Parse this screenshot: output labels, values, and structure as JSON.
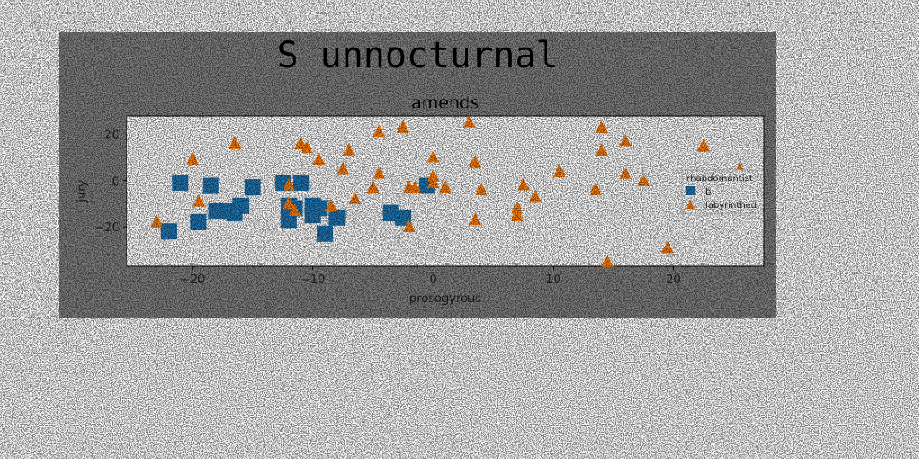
{
  "chart_data": {
    "type": "scatter",
    "suptitle": "S unnocturnal",
    "title": "amends",
    "xlabel": "prosogyrous",
    "ylabel": "jury",
    "xlim": [
      -25.5,
      27.5
    ],
    "ylim": [
      -37,
      28
    ],
    "xticks": [
      -20,
      -10,
      0,
      10,
      20
    ],
    "yticks": [
      -20,
      0,
      20
    ],
    "xtick_labels": [
      "−20",
      "−10",
      "0",
      "10",
      "20"
    ],
    "ytick_labels": [
      "−20",
      "0",
      "20"
    ],
    "grid": false,
    "legend": {
      "title": "rhabdomantist",
      "placement": "center-right"
    },
    "series": [
      {
        "name": "b",
        "marker": "square",
        "color": "#1f77b4",
        "points": [
          [
            -22,
            -22
          ],
          [
            -21,
            -1
          ],
          [
            -19.5,
            -18
          ],
          [
            -18.5,
            -2
          ],
          [
            -18,
            -13
          ],
          [
            -17,
            -13
          ],
          [
            -16.5,
            -14
          ],
          [
            -16,
            -11
          ],
          [
            -15,
            -3
          ],
          [
            -12.5,
            -1
          ],
          [
            -12,
            -11
          ],
          [
            -12,
            -17
          ],
          [
            -11.5,
            -12
          ],
          [
            -11,
            -1
          ],
          [
            -10,
            -15
          ],
          [
            -10,
            -11
          ],
          [
            -9.5,
            -12
          ],
          [
            -9,
            -23
          ],
          [
            -8,
            -16
          ],
          [
            -3.5,
            -14
          ],
          [
            -2.5,
            -16
          ],
          [
            -0.5,
            -2
          ]
        ]
      },
      {
        "name": "labyrinthed",
        "marker": "triangle",
        "color": "#ff7f0e",
        "points": [
          [
            -23,
            -18
          ],
          [
            -20,
            9
          ],
          [
            -19.5,
            -9
          ],
          [
            -16.5,
            16
          ],
          [
            -12,
            -2
          ],
          [
            -12,
            -10
          ],
          [
            -11.5,
            -13
          ],
          [
            -11,
            16
          ],
          [
            -10.5,
            14
          ],
          [
            -9.5,
            9
          ],
          [
            -8.5,
            -11
          ],
          [
            -7.5,
            5
          ],
          [
            -7,
            13
          ],
          [
            -6.5,
            -8
          ],
          [
            -5,
            -3
          ],
          [
            -4.5,
            21
          ],
          [
            -4.5,
            3
          ],
          [
            -2,
            -3
          ],
          [
            -2.5,
            23
          ],
          [
            -2,
            -20
          ],
          [
            -1.5,
            -3
          ],
          [
            0,
            2
          ],
          [
            0,
            -1
          ],
          [
            0,
            10
          ],
          [
            1,
            -3
          ],
          [
            3,
            25
          ],
          [
            3.5,
            8
          ],
          [
            3.5,
            -17
          ],
          [
            4,
            -4
          ],
          [
            7,
            -12
          ],
          [
            7,
            -15
          ],
          [
            7.5,
            -2
          ],
          [
            8.5,
            -7
          ],
          [
            10.5,
            4
          ],
          [
            13.5,
            -4
          ],
          [
            14,
            23
          ],
          [
            14,
            13
          ],
          [
            14.5,
            -35
          ],
          [
            16,
            17
          ],
          [
            16,
            3
          ],
          [
            17.5,
            0
          ],
          [
            19.5,
            -29
          ],
          [
            22.5,
            15
          ],
          [
            25.5,
            5
          ]
        ]
      }
    ]
  }
}
